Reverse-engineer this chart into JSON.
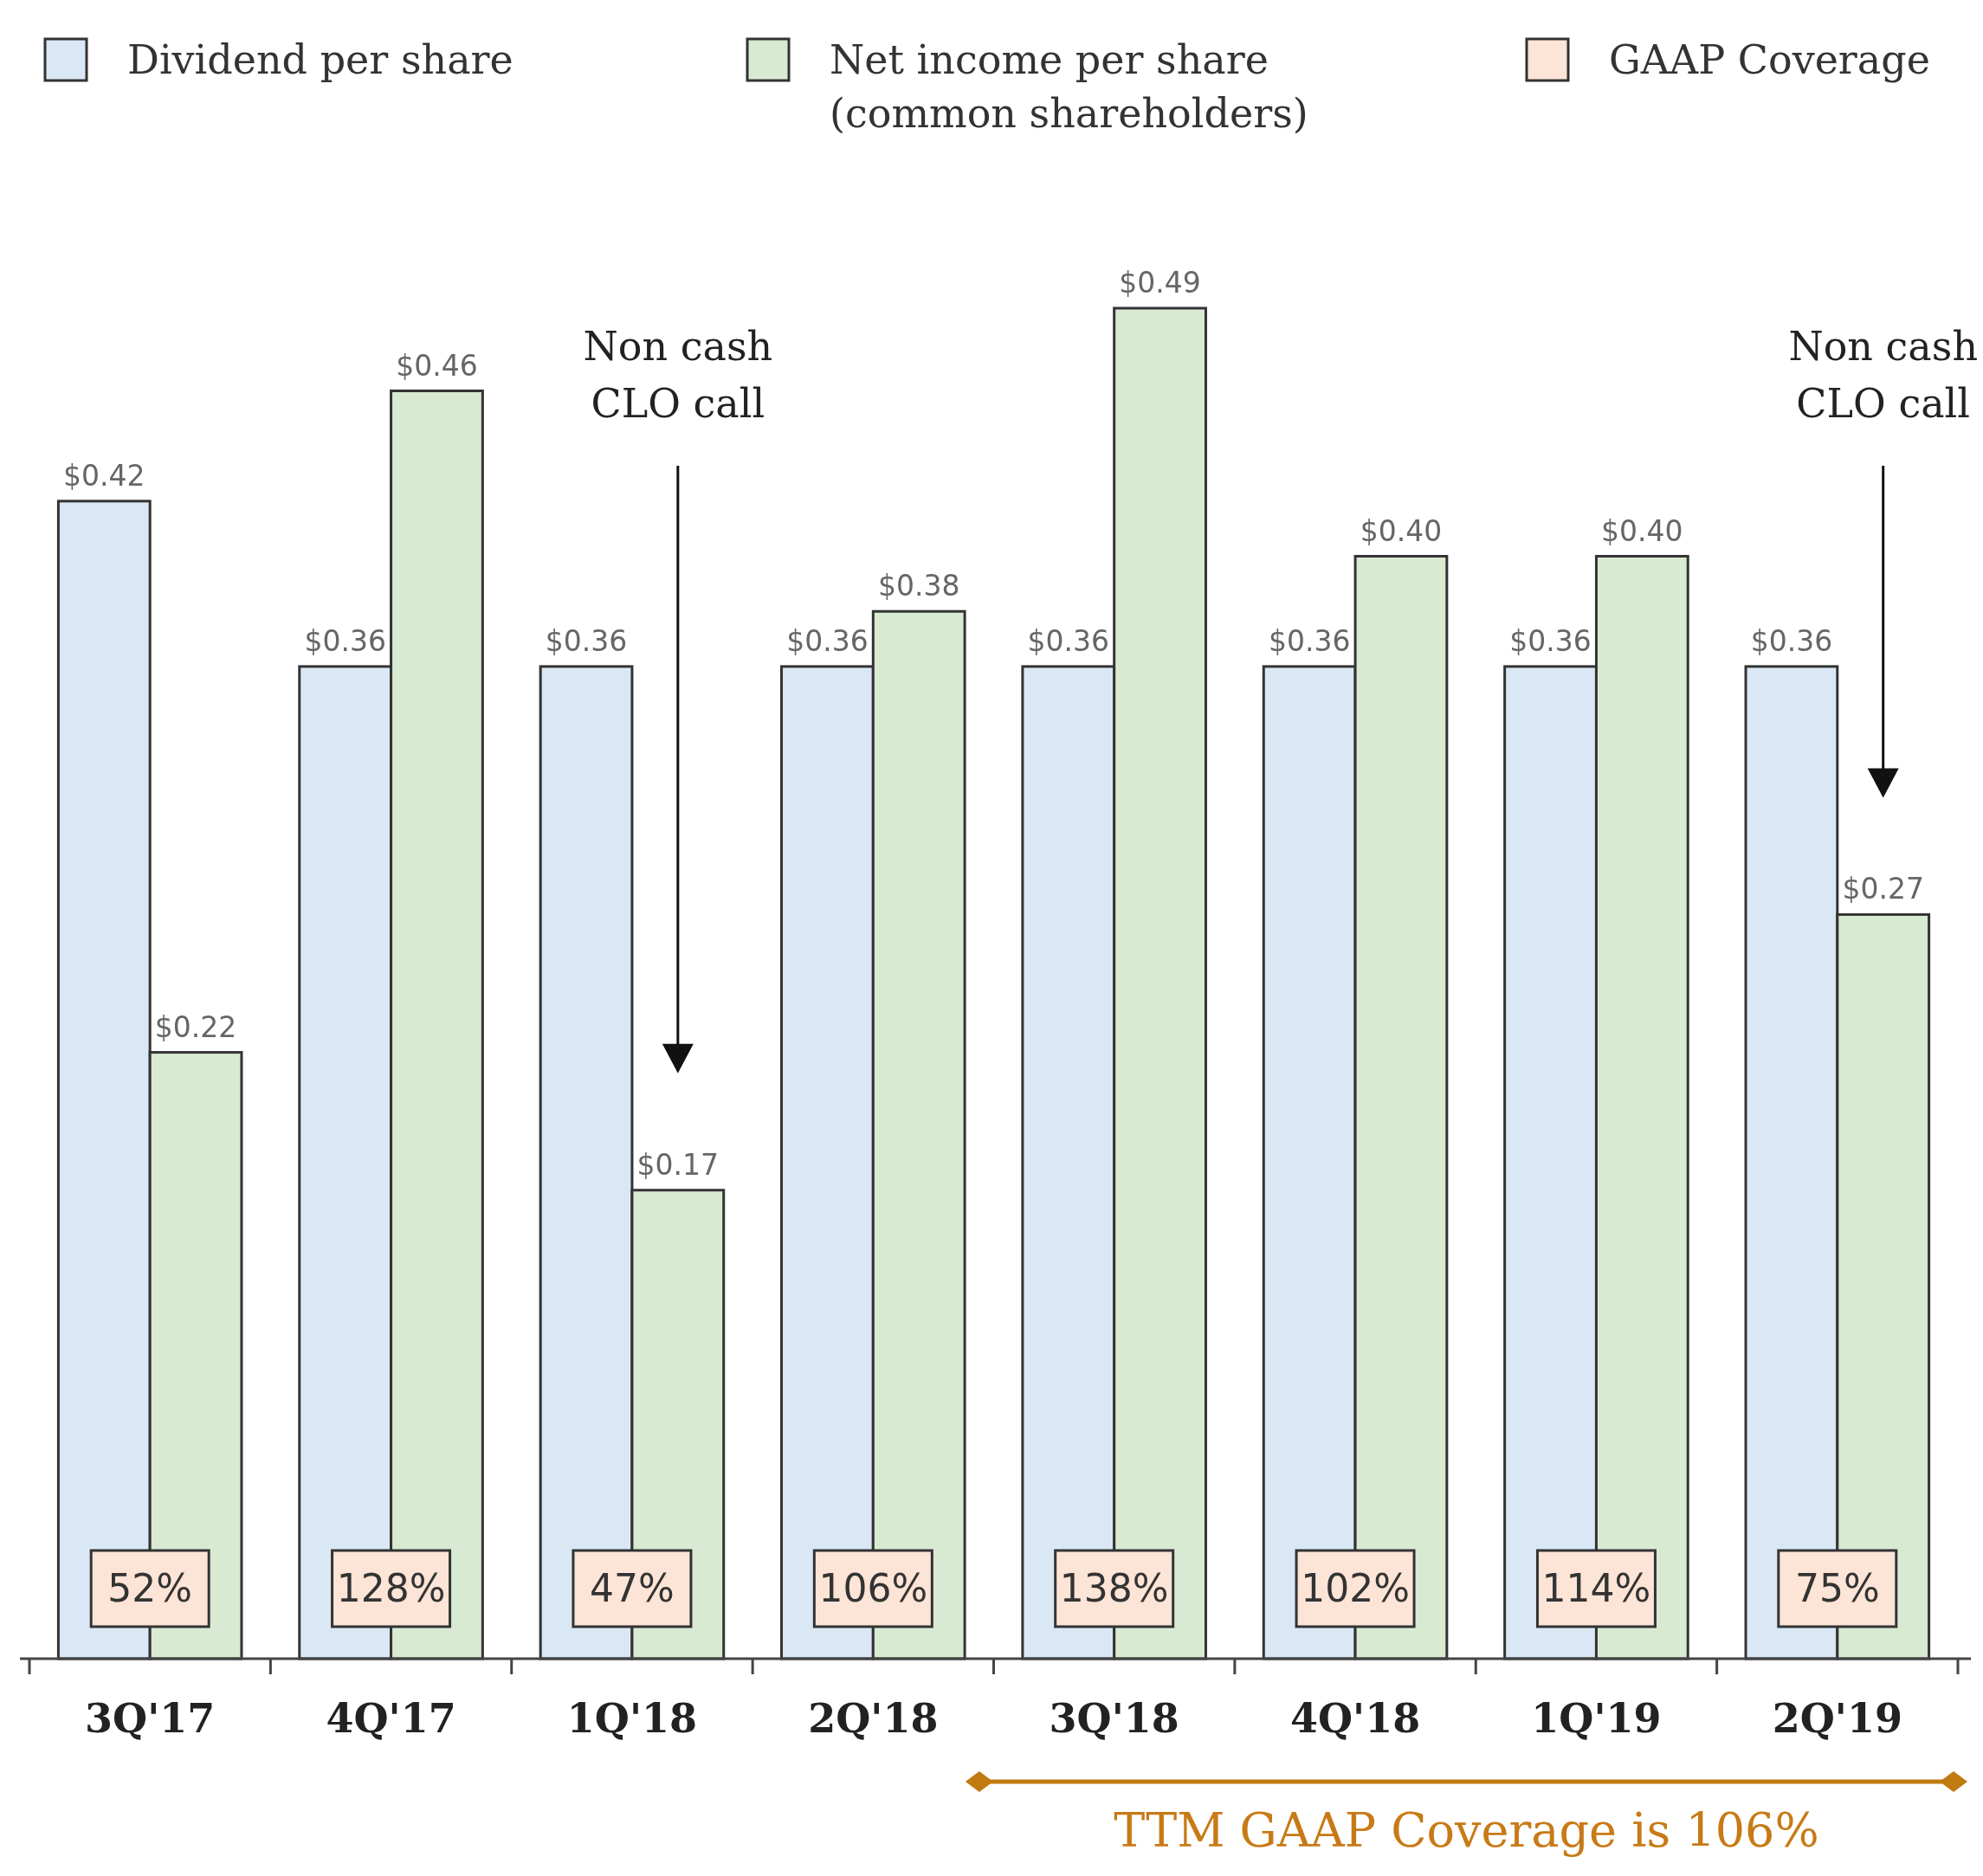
{
  "chart_data": {
    "type": "bar",
    "categories": [
      "3Q'17",
      "4Q'17",
      "1Q'18",
      "2Q'18",
      "3Q'18",
      "4Q'18",
      "1Q'19",
      "2Q'19"
    ],
    "series": [
      {
        "name": "Dividend per share",
        "color": "#dae8f6",
        "values": [
          0.42,
          0.36,
          0.36,
          0.36,
          0.36,
          0.36,
          0.36,
          0.36
        ],
        "value_labels": [
          "$0.42",
          "$0.36",
          "$0.36",
          "$0.36",
          "$0.36",
          "$0.36",
          "$0.36",
          "$0.36"
        ]
      },
      {
        "name": "Net income per share\n(common shareholders)",
        "color": "#d9ead3",
        "values": [
          0.22,
          0.46,
          0.17,
          0.38,
          0.49,
          0.4,
          0.4,
          0.27
        ],
        "value_labels": [
          "$0.22",
          "$0.46",
          "$0.17",
          "$0.38",
          "$0.49",
          "$0.40",
          "$0.40",
          "$0.27"
        ]
      },
      {
        "name": "GAAP Coverage",
        "type": "other",
        "color": "#fce4d6",
        "values": [
          null,
          null,
          null,
          null,
          null,
          null,
          null,
          null
        ]
      }
    ],
    "annotations": [
      "Non cash\nCLO call",
      "Non cash\nCLO call",
      "TTM GAAP Coverage is 106%",
      {
        "text": "52%",
        "x": "3Q'17"
      },
      {
        "text": "128%",
        "x": "4Q'17"
      },
      {
        "text": "47%",
        "x": "1Q'18"
      },
      {
        "text": "106%",
        "x": "2Q'18"
      },
      {
        "text": "138%",
        "x": "3Q'18"
      },
      {
        "text": "102%",
        "x": "4Q'18"
      },
      {
        "text": "114%",
        "x": "1Q'19"
      },
      {
        "text": "75%",
        "x": "2Q'19"
      }
    ],
    "legend": "top left"
  }
}
